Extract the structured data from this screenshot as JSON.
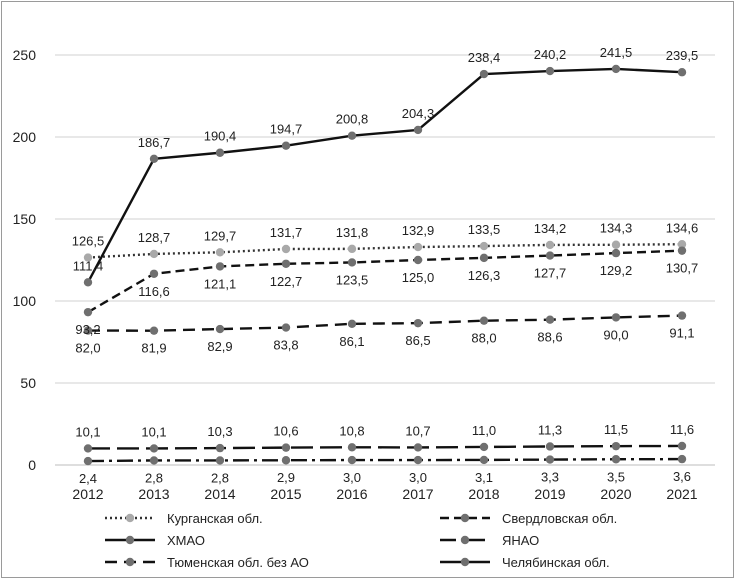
{
  "chart_data": {
    "type": "line",
    "title": "",
    "xlabel": "",
    "ylabel": "",
    "ylim": [
      0,
      250
    ],
    "yticks": [
      "0",
      "50",
      "100",
      "150",
      "200",
      "250"
    ],
    "grid": "horizontal",
    "legend_position": "bottom",
    "categories": [
      "2012",
      "2013",
      "2014",
      "2015",
      "2016",
      "2017",
      "2018",
      "2019",
      "2020",
      "2021"
    ],
    "series": [
      {
        "name": "Курганская обл.",
        "color": "#333333",
        "dash": "dotted",
        "values": [
          126.5,
          128.7,
          129.7,
          131.7,
          131.8,
          132.9,
          133.5,
          134.2,
          134.3,
          134.6
        ],
        "labels": [
          "126,5",
          "128,7",
          "129,7",
          "131,7",
          "131,8",
          "132,9",
          "133,5",
          "134,2",
          "134,3",
          "134,6"
        ],
        "label_position": "above"
      },
      {
        "name": "Свердловская обл.",
        "color": "#111111",
        "dash": "dashed",
        "values": [
          93.2,
          116.6,
          121.1,
          122.7,
          123.5,
          125.0,
          126.3,
          127.7,
          129.2,
          130.7
        ],
        "labels": [
          "93,2",
          "116,6",
          "121,1",
          "122,7",
          "123,5",
          "125,0",
          "126,3",
          "127,7",
          "129,2",
          "130,7"
        ],
        "label_position": "below"
      },
      {
        "name": "ХМАО",
        "color": "#111111",
        "dash": "longdash",
        "values": [
          10.1,
          10.1,
          10.3,
          10.6,
          10.8,
          10.7,
          11.0,
          11.3,
          11.5,
          11.6
        ],
        "labels": [
          "10,1",
          "10,1",
          "10,3",
          "10,6",
          "10,8",
          "10,7",
          "11,0",
          "11,3",
          "11,5",
          "11,6"
        ],
        "label_position": "above"
      },
      {
        "name": "ЯНАО",
        "color": "#111111",
        "dash": "dashdot",
        "values": [
          2.4,
          2.8,
          2.8,
          2.9,
          3.0,
          3.0,
          3.1,
          3.3,
          3.5,
          3.6
        ],
        "labels": [
          "2,4",
          "2,8",
          "2,8",
          "2,9",
          "3,0",
          "3,0",
          "3,1",
          "3,3",
          "3,5",
          "3,6"
        ],
        "label_position": "below"
      },
      {
        "name": "Тюменская обл. без АО",
        "color": "#111111",
        "dash": "dashed-wide",
        "values": [
          82.0,
          81.9,
          82.9,
          83.8,
          86.1,
          86.5,
          88.0,
          88.6,
          90.0,
          91.1
        ],
        "labels": [
          "82,0",
          "81,9",
          "82,9",
          "83,8",
          "86,1",
          "86,5",
          "88,0",
          "88,6",
          "90,0",
          "91,1"
        ],
        "label_position": "below"
      },
      {
        "name": "Челябинская обл.",
        "color": "#111111",
        "dash": "solid",
        "values": [
          111.4,
          186.7,
          190.4,
          194.7,
          200.8,
          204.3,
          238.4,
          240.2,
          241.5,
          239.5
        ],
        "labels": [
          "111,4",
          "186,7",
          "190,4",
          "194,7",
          "200,8",
          "204,3",
          "238,4",
          "240,2",
          "241,5",
          "239,5"
        ],
        "label_position": "above"
      }
    ]
  }
}
